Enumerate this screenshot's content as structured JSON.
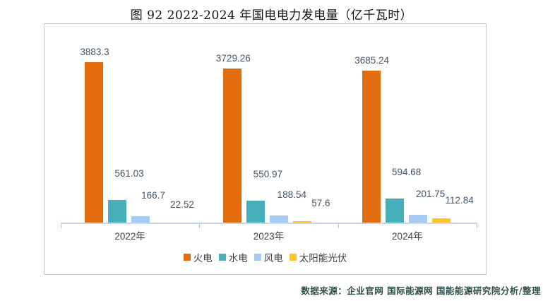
{
  "title": "图 92 2022-2024 年国电电力发电量（亿千瓦时）",
  "source_note": "数据来源：企业官网 国际能源网 国能能源研究院分析/整理",
  "chart_data": {
    "type": "bar",
    "title": "图 92 2022-2024 年国电电力发电量（亿千瓦时）",
    "categories": [
      "2022年",
      "2023年",
      "2024年"
    ],
    "series": [
      {
        "name": "火电",
        "key": "thermal",
        "color": "#e36c0f",
        "values": [
          3883.3,
          3729.26,
          3685.24
        ]
      },
      {
        "name": "水电",
        "key": "hydro",
        "color": "#47afba",
        "values": [
          561.03,
          550.97,
          594.68
        ]
      },
      {
        "name": "风电",
        "key": "wind",
        "color": "#a6cbf2",
        "values": [
          166.7,
          188.54,
          201.75
        ]
      },
      {
        "name": "太阳能光伏",
        "key": "solar",
        "color": "#fcc62b",
        "values": [
          22.52,
          57.6,
          112.84
        ]
      }
    ],
    "ylim": [
      0,
      3950
    ],
    "grid": false,
    "legend_position": "bottom",
    "data_labels": "outside-end",
    "axis_color": "#c6d5ea",
    "label_color": "#44546a"
  }
}
